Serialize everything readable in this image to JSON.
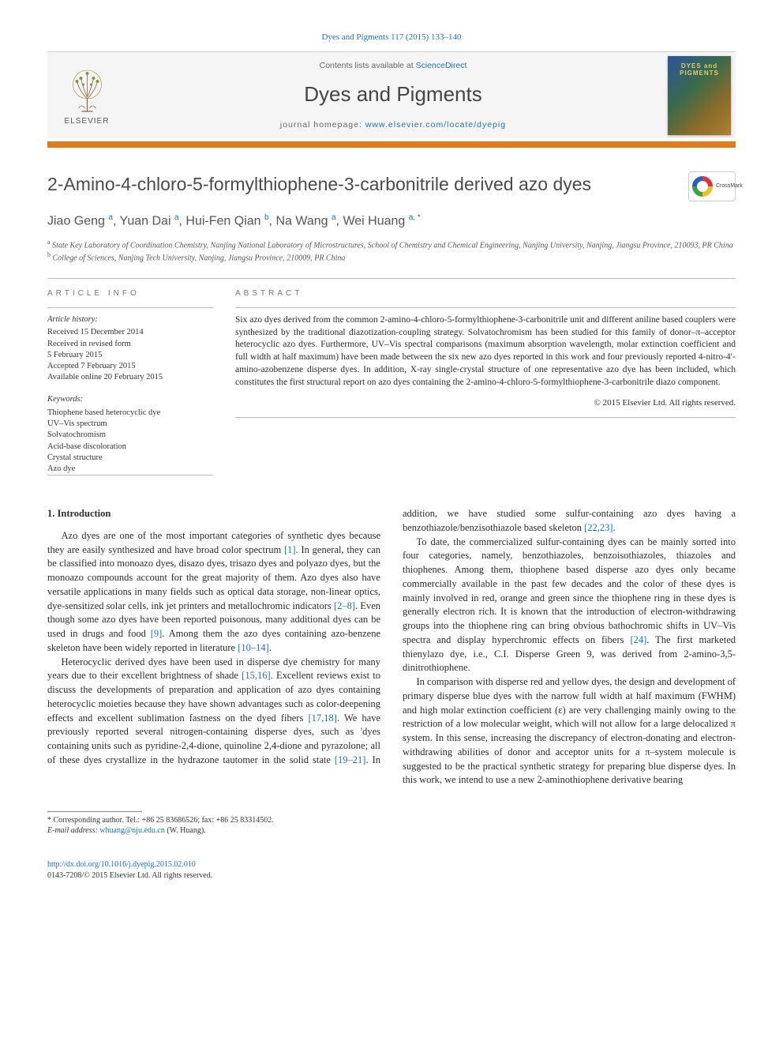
{
  "citation": "Dyes and Pigments 117 (2015) 133–140",
  "banner": {
    "contents_prefix": "Contents lists available at ",
    "contents_link": "ScienceDirect",
    "journal": "Dyes and Pigments",
    "homepage_prefix": "journal homepage: ",
    "homepage_url": "www.elsevier.com/locate/dyepig",
    "publisher": "ELSEVIER",
    "cover_text": "DYES and PIGMENTS"
  },
  "crossmark_label": "CrossMark",
  "title": "2-Amino-4-chloro-5-formylthiophene-3-carbonitrile derived azo dyes",
  "authors_html": "Jiao Geng <sup>a</sup>, Yuan Dai <sup>a</sup>, Hui-Fen Qian <sup>b</sup>, Na Wang <sup>a</sup>, Wei Huang <sup>a, *</sup>",
  "affiliations": [
    "a State Key Laboratory of Coordination Chemistry, Nanjing National Laboratory of Microstructures, School of Chemistry and Chemical Engineering, Nanjing University, Nanjing, Jiangsu Province, 210093, PR China",
    "b College of Sciences, Nanjing Tech University, Nanjing, Jiangsu Province, 210009, PR China"
  ],
  "article_info_label": "ARTICLE INFO",
  "abstract_label": "ABSTRACT",
  "history_head": "Article history:",
  "history": [
    "Received 15 December 2014",
    "Received in revised form",
    "5 February 2015",
    "Accepted 7 February 2015",
    "Available online 20 February 2015"
  ],
  "keywords_head": "Keywords:",
  "keywords": [
    "Thiophene based heterocyclic dye",
    "UV–Vis spectrum",
    "Solvatochromism",
    "Acid-base discoloration",
    "Crystal structure",
    "Azo dye"
  ],
  "abstract": "Six azo dyes derived from the common 2-amino-4-chloro-5-formylthiophene-3-carbonitrile unit and different aniline based couplers were synthesized by the traditional diazotization-coupling strategy. Solvatochromism has been studied for this family of donor–π–acceptor heterocyclic azo dyes. Furthermore, UV–Vis spectral comparisons (maximum absorption wavelength, molar extinction coefficient and full width at half maximum) have been made between the six new azo dyes reported in this work and four previously reported 4-nitro-4′-amino-azobenzene disperse dyes. In addition, X-ray single-crystal structure of one representative azo dye has been included, which constitutes the first structural report on azo dyes containing the 2-amino-4-chloro-5-formylthiophene-3-carbonitrile diazo component.",
  "copyright": "© 2015 Elsevier Ltd. All rights reserved.",
  "intro_heading": "1. Introduction",
  "paragraphs": {
    "p1a": "Azo dyes are one of the most important categories of synthetic dyes because they are easily synthesized and have broad color spectrum ",
    "p1b": ". In general, they can be classified into monoazo dyes, disazo dyes, trisazo dyes and polyazo dyes, but the monoazo compounds account for the great majority of them. Azo dyes also have versatile applications in many fields such as optical data storage, non-linear optics, dye-sensitized solar cells, ink jet printers and metallochromic indicators ",
    "p1c": ". Even though some azo dyes have been reported poisonous, many additional dyes can be used in drugs and food ",
    "p1d": ". Among them the azo dyes containing azo-benzene skeleton have been widely reported in literature ",
    "p1e": ".",
    "p2a": "Heterocyclic derived dyes have been used in disperse dye chemistry for many years due to their excellent brightness of shade ",
    "p2b": ". Excellent reviews exist to discuss the developments of preparation and application of azo dyes containing heterocyclic moieties because they have shown advantages such as color-deepening effects and excellent sublimation fastness on the dyed fibers ",
    "p2c": ". We have previously reported several nitrogen-containing disperse dyes, such as 'dyes containing units such as pyridine-2,4-dione, quinoline 2,4-dione and pyrazolone; all of these dyes crystallize in the hydrazone tautomer in the solid state ",
    "p2d": ". In addition, we have studied some sulfur-containing azo dyes having a benzothiazole/benzisothiazole based skeleton ",
    "p2e": ".",
    "p3a": "To date, the commercialized sulfur-containing dyes can be mainly sorted into four categories, namely, benzothiazoles, benzoisothiazoles, thiazoles and thiophenes. Among them, thiophene based disperse azo dyes only became commercially available in the past few decades and the color of these dyes is mainly involved in red, orange and green since the thiophene ring in these dyes is generally electron rich. It is known that the introduction of electron-withdrawing groups into the thiophene ring can bring obvious bathochromic shifts in UV–Vis spectra and display hyperchromic effects on fibers ",
    "p3b": ". The first marketed thienylazo dye, i.e., C.I. Disperse Green 9, was derived from 2-amino-3,5-dinitrothiophene.",
    "p4": "In comparison with disperse red and yellow dyes, the design and development of primary disperse blue dyes with the narrow full width at half maximum (FWHM) and high molar extinction coefficient (ε) are very challenging mainly owing to the restriction of a low molecular weight, which will not allow for a large delocalized π system. In this sense, increasing the discrepancy of electron-donating and electron-withdrawing abilities of donor and acceptor units for a π–system molecule is suggested to be the practical synthetic strategy for preparing blue disperse dyes. In this work, we intend to use a new 2-aminothiophene derivative bearing"
  },
  "refs": {
    "r1": "[1]",
    "r2_8": "[2–8]",
    "r9": "[9]",
    "r10_14": "[10–14]",
    "r15_16": "[15,16]",
    "r17_18": "[17,18]",
    "r19_21": "[19–21]",
    "r22_23": "[22,23]",
    "r24": "[24]"
  },
  "footnote": {
    "corr": "* Corresponding author. Tel.: +86 25 83686526; fax: +86 25 83314502.",
    "email_label": "E-mail address: ",
    "email": "whuang@nju.edu.cn",
    "email_suffix": " (W. Huang)."
  },
  "footer": {
    "doi": "http://dx.doi.org/10.1016/j.dyepig.2015.02.010",
    "issn_line": "0143-7208/© 2015 Elsevier Ltd. All rights reserved."
  },
  "colors": {
    "accent_orange": "#e67a1a",
    "link_blue": "#1a73b8",
    "text_gray": "#4a4a4a"
  }
}
